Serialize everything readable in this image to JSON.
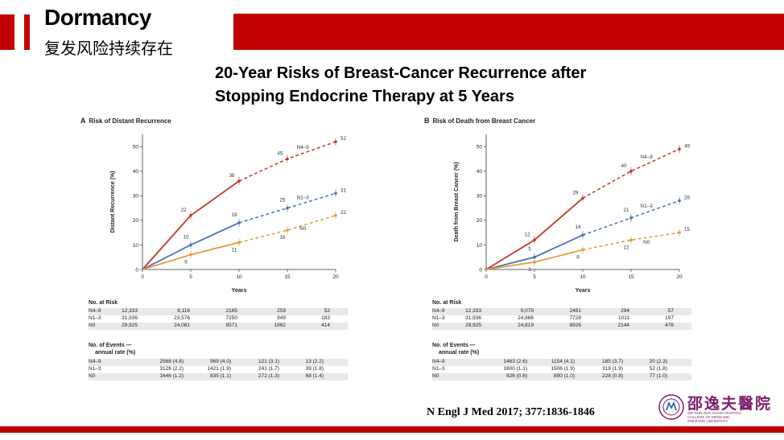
{
  "slide": {
    "title": "Dormancy",
    "subtitle_cn": "复发风险持续存在",
    "headline_line1": "20-Year Risks of Breast-Cancer Recurrence  after",
    "headline_line2": "Stopping Endocrine Therapy at 5 Years",
    "citation": "N Engl J Med 2017; 377:1836-1846",
    "logo_cn": "邵逸夫醫院",
    "logo_en_line1": "SIR RUN RUN SHAW HOSPITAL",
    "logo_en_line2": "COLLEGE OF MEDICINE,",
    "logo_en_line3": "ZHEJIANG UNIVERSITY",
    "colors": {
      "brand_red": "#c00000",
      "n4_9": "#c0392b",
      "n1_3": "#4a72b8",
      "n0": "#e39b3a"
    }
  },
  "chart_data": [
    {
      "type": "line",
      "panel": "A",
      "title": "Risk of Distant Recurrence",
      "xlabel": "Years",
      "ylabel": "Distant Recurrence (%)",
      "xlim": [
        0,
        20
      ],
      "ylim": [
        0,
        55
      ],
      "xticks": [
        0,
        5,
        10,
        15,
        20
      ],
      "yticks": [
        0,
        10,
        20,
        30,
        40,
        50
      ],
      "series": [
        {
          "name": "N4–9",
          "x": [
            0,
            5,
            10,
            15,
            20
          ],
          "values": [
            0,
            22,
            36,
            45,
            52
          ],
          "labels": [
            "22",
            "36",
            "45",
            "52"
          ]
        },
        {
          "name": "N1–3",
          "x": [
            0,
            5,
            10,
            15,
            20
          ],
          "values": [
            0,
            10,
            19,
            25,
            31
          ],
          "labels": [
            "10",
            "19",
            "25",
            "31"
          ]
        },
        {
          "name": "N0",
          "x": [
            0,
            5,
            10,
            15,
            20
          ],
          "values": [
            0,
            6,
            11,
            16,
            22
          ],
          "labels": [
            "6",
            "11",
            "16",
            "22"
          ]
        }
      ],
      "risk_table": {
        "header": "No. at Risk",
        "rows": [
          {
            "name": "N4–9",
            "cells": [
              "12,333",
              "8,116",
              "2165",
              "259",
              "52"
            ]
          },
          {
            "name": "N1–3",
            "cells": [
              "31,936",
              "23,576",
              "7250",
              "949",
              "183"
            ]
          },
          {
            "name": "N0",
            "cells": [
              "29,925",
              "24,081",
              "8571",
              "1982",
              "414"
            ]
          }
        ]
      },
      "events_table": {
        "header1": "No. of Events —",
        "header2": "annual rate (%)",
        "rows": [
          {
            "name": "N4–9",
            "cells": [
              "2568 (4.8)",
              "969 (4.0)",
              "121 (3.1)",
              "13 (2.2)"
            ]
          },
          {
            "name": "N1–3",
            "cells": [
              "3126 (2.2)",
              "1421 (1.9)",
              "241 (1.7)",
              "39 (1.8)"
            ]
          },
          {
            "name": "N0",
            "cells": [
              "1646 (1.2)",
              "835 (1.1)",
              "272 (1.3)",
              "68 (1.4)"
            ]
          }
        ]
      }
    },
    {
      "type": "line",
      "panel": "B",
      "title": "Risk of Death from Breast Cancer",
      "xlabel": "Years",
      "ylabel": "Death from Breast Cancer (%)",
      "xlim": [
        0,
        20
      ],
      "ylim": [
        0,
        55
      ],
      "xticks": [
        0,
        5,
        10,
        15,
        20
      ],
      "yticks": [
        0,
        10,
        20,
        30,
        40,
        50
      ],
      "series": [
        {
          "name": "N4–9",
          "x": [
            0,
            5,
            10,
            15,
            20
          ],
          "values": [
            0,
            12,
            29,
            40,
            49
          ],
          "labels": [
            "12",
            "29",
            "40",
            "49"
          ]
        },
        {
          "name": "N1–3",
          "x": [
            0,
            5,
            10,
            15,
            20
          ],
          "values": [
            0,
            5,
            14,
            21,
            28
          ],
          "labels": [
            "5",
            "14",
            "21",
            "28"
          ]
        },
        {
          "name": "N0",
          "x": [
            0,
            5,
            10,
            15,
            20
          ],
          "values": [
            0,
            3,
            8,
            12,
            15
          ],
          "labels": [
            "3",
            "8",
            "12",
            "15"
          ]
        }
      ],
      "risk_table": {
        "header": "No. at Risk",
        "rows": [
          {
            "name": "N4–9",
            "cells": [
              "12,333",
              "9,079",
              "2481",
              "294",
              "57"
            ]
          },
          {
            "name": "N1–3",
            "cells": [
              "31,936",
              "24,866",
              "7728",
              "1011",
              "197"
            ]
          },
          {
            "name": "N0",
            "cells": [
              "29,925",
              "24,819",
              "8926",
              "2144",
              "476"
            ]
          }
        ]
      },
      "events_table": {
        "header1": "No. of Events —",
        "header2": "annual rate (%)",
        "rows": [
          {
            "name": "N4–9",
            "cells": [
              "1463 (2.6)",
              "1154 (4.1)",
              "185 (3.7)",
              "20 (2.3)"
            ]
          },
          {
            "name": "N1–3",
            "cells": [
              "1600 (1.1)",
              "1506 (1.9)",
              "319 (1.9)",
              "52 (1.8)"
            ]
          },
          {
            "name": "N0",
            "cells": [
              "826 (0.6)",
              "890 (1.0)",
              "228 (0.8)",
              "77 (1.0)"
            ]
          }
        ]
      }
    }
  ]
}
